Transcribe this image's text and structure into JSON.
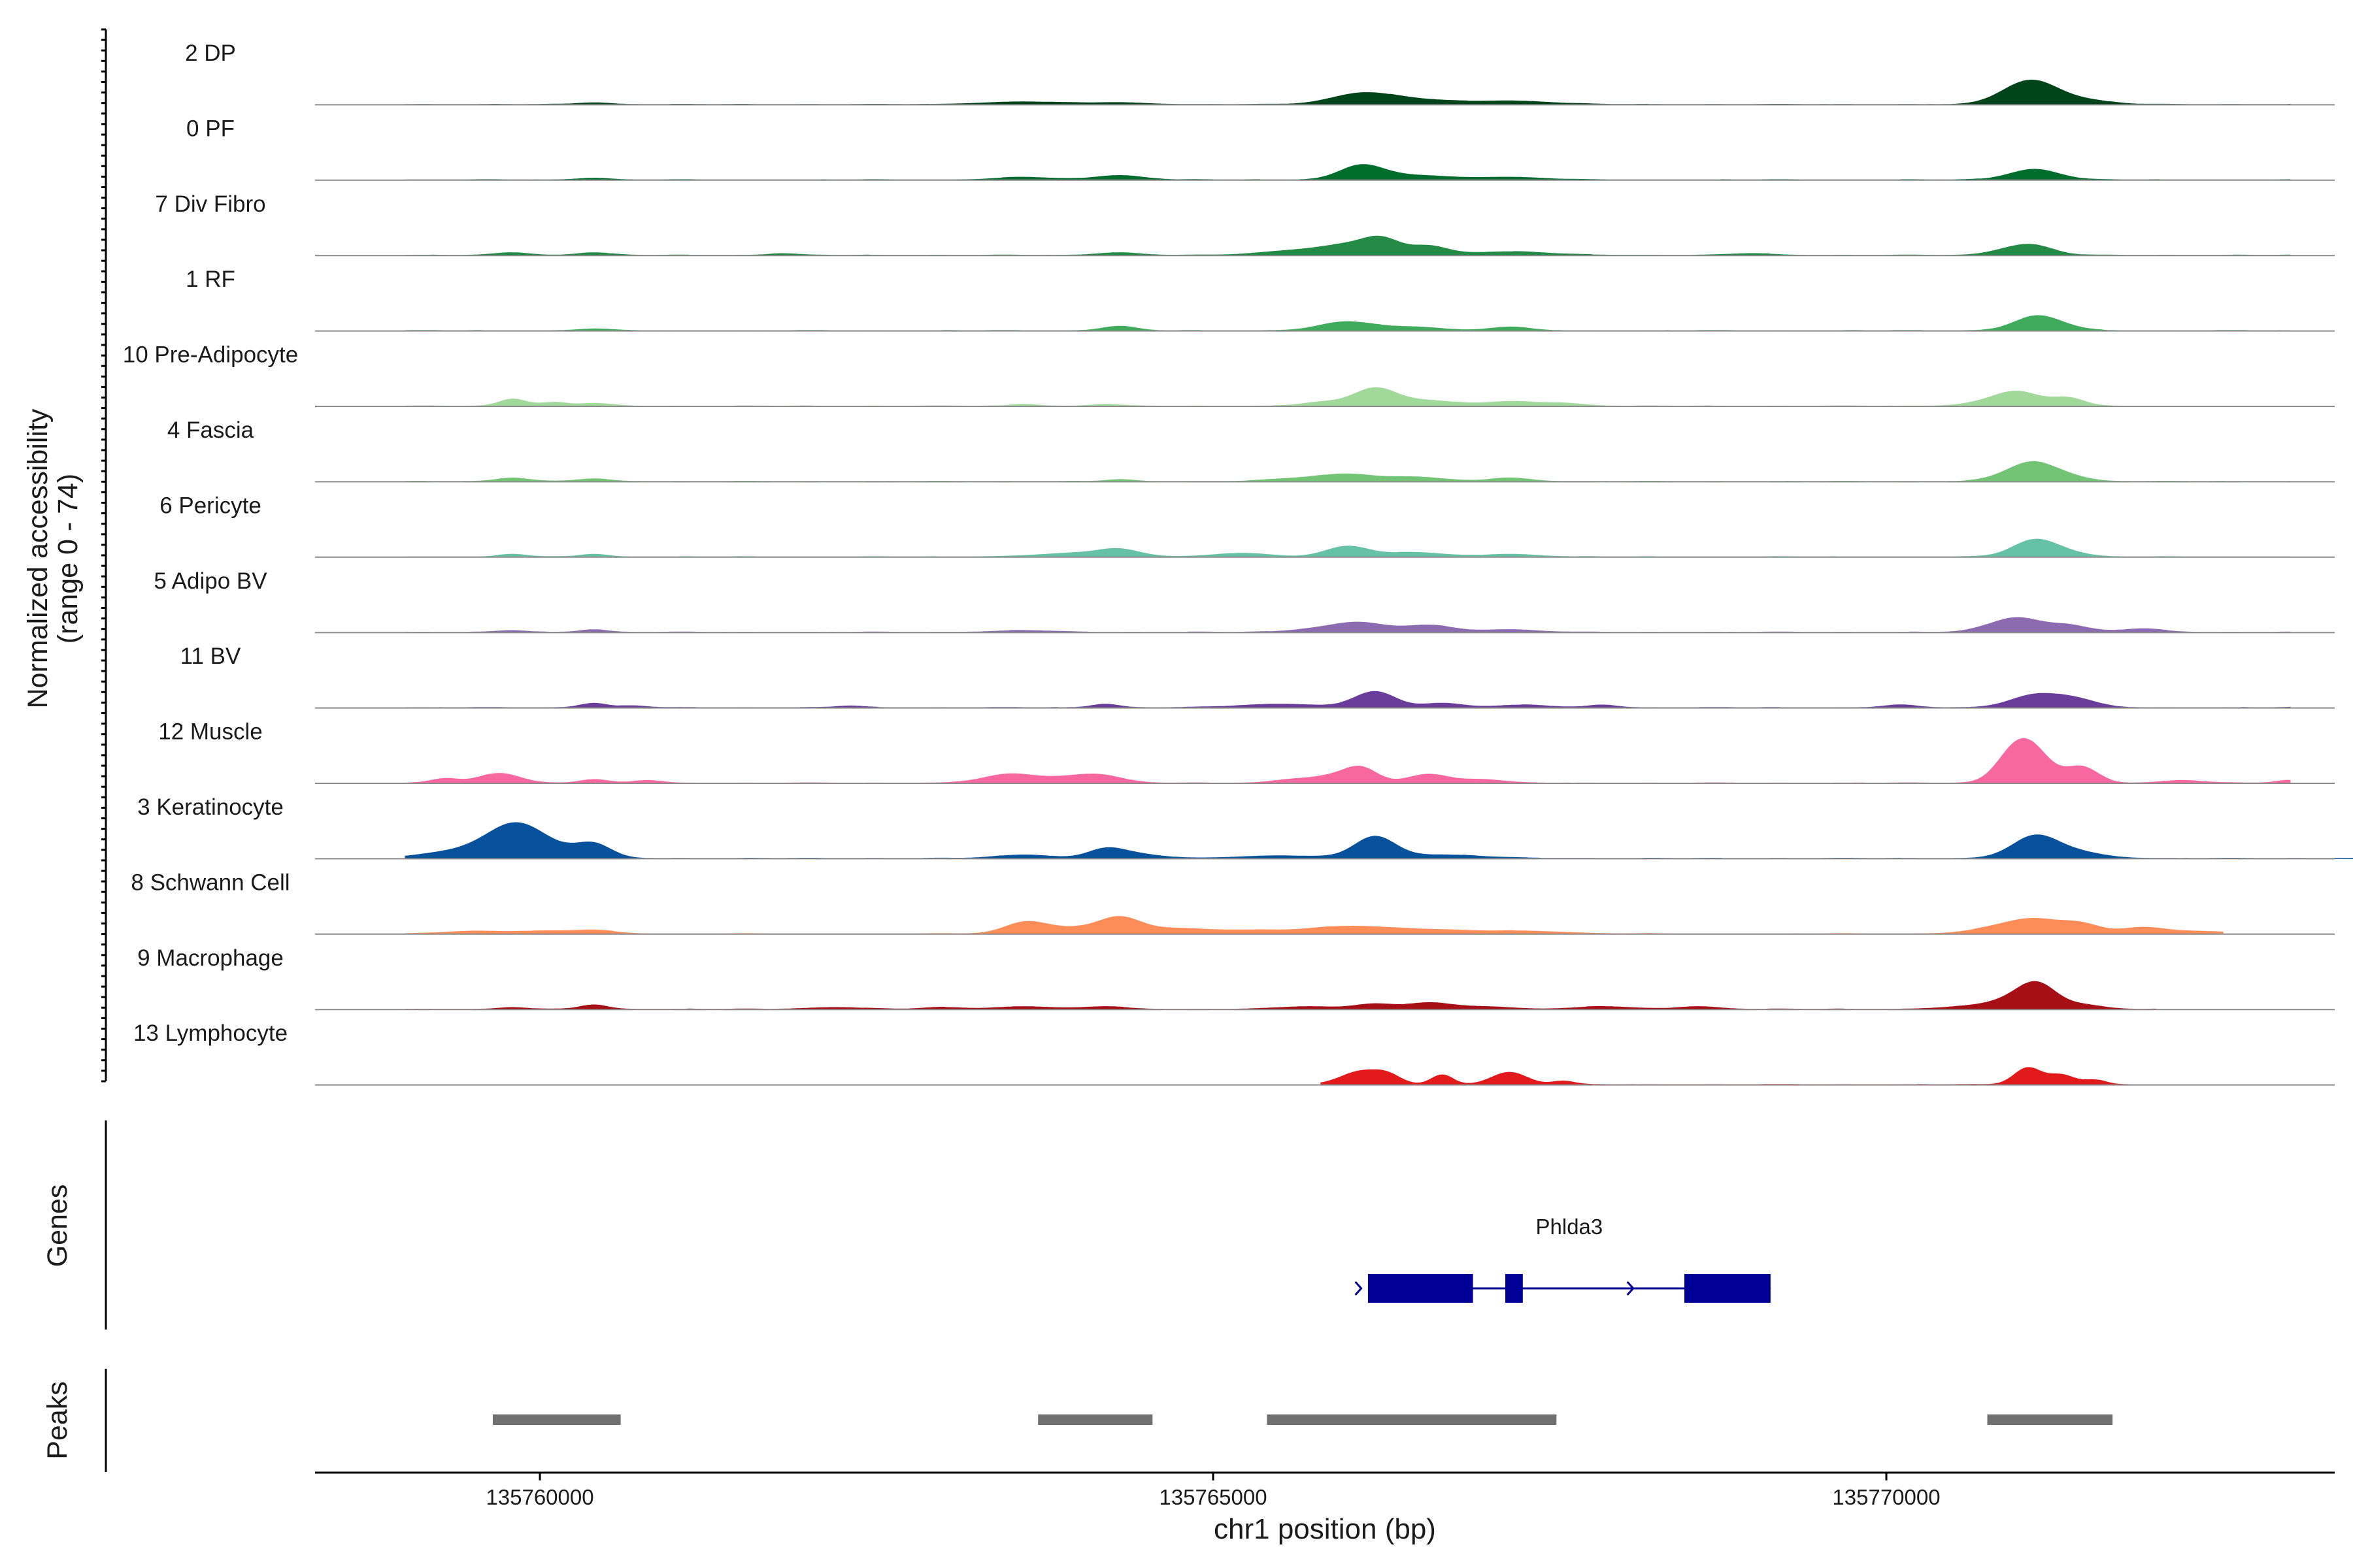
{
  "chart_data": {
    "type": "area",
    "subtype": "genome-coverage-tracks",
    "y_axis_label": "Normalized accessibility",
    "y_axis_range_label": "(range 0 - 74)",
    "y_range": [
      0,
      74
    ],
    "x_axis_label": "chr1 position (bp)",
    "x_range": [
      135758330,
      135773330
    ],
    "x_ticks": [
      135760000,
      135765000,
      135770000
    ],
    "x_tick_labels": [
      "135760000",
      "135765000",
      "135770000"
    ],
    "tracks": [
      {
        "name": "2 DP",
        "color": "#00441b",
        "range": [
          135759000,
          135773000
        ],
        "peaks": [
          [
            135760400,
            2,
            120
          ],
          [
            135763600,
            3,
            300
          ],
          [
            135764300,
            2,
            200
          ],
          [
            135766100,
            12,
            220
          ],
          [
            135766500,
            5,
            250
          ],
          [
            135767200,
            4,
            300
          ],
          [
            135770900,
            6,
            150
          ],
          [
            135771100,
            24,
            180
          ],
          [
            135771450,
            5,
            200
          ]
        ]
      },
      {
        "name": "0 PF",
        "color": "#006d2c",
        "range": [
          135759000,
          135773000
        ],
        "peaks": [
          [
            135760400,
            2,
            120
          ],
          [
            135763600,
            3,
            200
          ],
          [
            135764300,
            5,
            180
          ],
          [
            135766100,
            16,
            160
          ],
          [
            135766500,
            5,
            250
          ],
          [
            135767200,
            3,
            250
          ],
          [
            135771100,
            12,
            180
          ]
        ]
      },
      {
        "name": "7 Div Fibro",
        "color": "#238b45",
        "range": [
          135759000,
          135773000
        ],
        "peaks": [
          [
            135759800,
            3,
            120
          ],
          [
            135760400,
            3,
            120
          ],
          [
            135761800,
            2,
            100
          ],
          [
            135764300,
            3,
            150
          ],
          [
            135765600,
            5,
            250
          ],
          [
            135766000,
            10,
            200
          ],
          [
            135766250,
            16,
            140
          ],
          [
            135766600,
            10,
            140
          ],
          [
            135767200,
            4,
            300
          ],
          [
            135769000,
            2,
            150
          ],
          [
            135770900,
            5,
            150
          ],
          [
            135771100,
            10,
            150
          ]
        ]
      },
      {
        "name": "1 RF",
        "color": "#41ab5d",
        "range": [
          135759000,
          135773000
        ],
        "peaks": [
          [
            135760400,
            2,
            120
          ],
          [
            135764300,
            5,
            120
          ],
          [
            135766000,
            10,
            200
          ],
          [
            135766500,
            4,
            200
          ],
          [
            135767200,
            4,
            150
          ],
          [
            135771100,
            15,
            160
          ],
          [
            135771300,
            4,
            150
          ]
        ]
      },
      {
        "name": "10 Pre-Adipocyte",
        "color": "#a1d99b",
        "range": [
          135759000,
          135772000
        ],
        "peaks": [
          [
            135759800,
            8,
            100
          ],
          [
            135760100,
            4,
            100
          ],
          [
            135760400,
            3,
            120
          ],
          [
            135763600,
            2,
            100
          ],
          [
            135764200,
            2,
            100
          ],
          [
            135765800,
            4,
            150
          ],
          [
            135766200,
            20,
            160
          ],
          [
            135766600,
            6,
            200
          ],
          [
            135767200,
            5,
            200
          ],
          [
            135767600,
            3,
            150
          ],
          [
            135770700,
            3,
            150
          ],
          [
            135770900,
            5,
            150
          ],
          [
            135771000,
            12,
            160
          ],
          [
            135771350,
            9,
            120
          ]
        ]
      },
      {
        "name": "4 Fascia",
        "color": "#74c476",
        "range": [
          135759000,
          135773000
        ],
        "peaks": [
          [
            135759800,
            4,
            120
          ],
          [
            135760400,
            3,
            120
          ],
          [
            135764300,
            2,
            100
          ],
          [
            135765600,
            3,
            200
          ],
          [
            135766000,
            8,
            200
          ],
          [
            135766500,
            5,
            200
          ],
          [
            135767200,
            4,
            150
          ],
          [
            135770900,
            5,
            150
          ],
          [
            135771100,
            19,
            160
          ],
          [
            135771350,
            5,
            150
          ]
        ]
      },
      {
        "name": "6 Pericyte",
        "color": "#66c2a4",
        "range": [
          135759000,
          135773000
        ],
        "peaks": [
          [
            135759800,
            3,
            100
          ],
          [
            135760400,
            3,
            100
          ],
          [
            135764000,
            4,
            300
          ],
          [
            135764300,
            7,
            150
          ],
          [
            135765200,
            4,
            200
          ],
          [
            135766000,
            12,
            160
          ],
          [
            135766500,
            5,
            200
          ],
          [
            135767200,
            3,
            200
          ],
          [
            135771100,
            19,
            160
          ],
          [
            135771350,
            4,
            150
          ]
        ]
      },
      {
        "name": "5 Adipo BV",
        "color": "#8c6bb1",
        "range": [
          135759000,
          135773000
        ],
        "peaks": [
          [
            135759800,
            2,
            100
          ],
          [
            135760400,
            3,
            100
          ],
          [
            135763600,
            2,
            200
          ],
          [
            135765800,
            4,
            200
          ],
          [
            135766100,
            10,
            180
          ],
          [
            135766600,
            8,
            180
          ],
          [
            135767200,
            3,
            200
          ],
          [
            135770800,
            5,
            150
          ],
          [
            135771000,
            14,
            160
          ],
          [
            135771350,
            8,
            150
          ],
          [
            135771900,
            4,
            150
          ]
        ]
      },
      {
        "name": "11 BV",
        "color": "#6a3d9a",
        "range": [
          135759000,
          135773000
        ],
        "peaks": [
          [
            135760400,
            5,
            100
          ],
          [
            135760700,
            2,
            100
          ],
          [
            135762300,
            2,
            100
          ],
          [
            135764200,
            4,
            100
          ],
          [
            135765500,
            4,
            300
          ],
          [
            135766200,
            18,
            150
          ],
          [
            135766700,
            5,
            150
          ],
          [
            135767300,
            3,
            200
          ],
          [
            135767900,
            3,
            100
          ],
          [
            135770100,
            3,
            120
          ],
          [
            135771100,
            14,
            180
          ],
          [
            135771400,
            9,
            160
          ],
          [
            135773200,
            2,
            100
          ]
        ]
      },
      {
        "name": "12 Muscle",
        "color": "#f768a1",
        "range": [
          135759000,
          135773000
        ],
        "peaks": [
          [
            135759300,
            5,
            100
          ],
          [
            135759700,
            11,
            150
          ],
          [
            135760400,
            4,
            100
          ],
          [
            135760800,
            3,
            100
          ],
          [
            135763500,
            10,
            200
          ],
          [
            135764000,
            7,
            200
          ],
          [
            135764200,
            5,
            150
          ],
          [
            135765600,
            4,
            150
          ],
          [
            135765900,
            7,
            150
          ],
          [
            135766100,
            16,
            120
          ],
          [
            135766600,
            10,
            150
          ],
          [
            135767000,
            4,
            150
          ],
          [
            135770900,
            12,
            120
          ],
          [
            135771050,
            44,
            150
          ],
          [
            135771450,
            18,
            120
          ],
          [
            135772200,
            3,
            150
          ],
          [
            135773000,
            3,
            100
          ]
        ]
      },
      {
        "name": "3 Keratinocyte",
        "color": "#08519c",
        "range": [
          135759000,
          135774100
        ],
        "peaks": [
          [
            135759500,
            10,
            300
          ],
          [
            135759820,
            32,
            200
          ],
          [
            135760100,
            8,
            200
          ],
          [
            135760400,
            15,
            130
          ],
          [
            135763600,
            4,
            200
          ],
          [
            135764200,
            9,
            130
          ],
          [
            135764400,
            5,
            200
          ],
          [
            135765500,
            3,
            300
          ],
          [
            135766200,
            24,
            150
          ],
          [
            135766700,
            4,
            300
          ],
          [
            135771100,
            24,
            170
          ],
          [
            135771400,
            7,
            200
          ],
          [
            135774000,
            2,
            100
          ]
        ]
      },
      {
        "name": "8 Schwann Cell",
        "color": "#fc8d59",
        "range": [
          135759000,
          135772500
        ],
        "peaks": [
          [
            135759500,
            3,
            200
          ],
          [
            135760000,
            3,
            200
          ],
          [
            135760400,
            4,
            150
          ],
          [
            135763600,
            12,
            150
          ],
          [
            135763900,
            6,
            200
          ],
          [
            135764300,
            18,
            160
          ],
          [
            135764700,
            5,
            200
          ],
          [
            135765200,
            4,
            300
          ],
          [
            135766000,
            8,
            300
          ],
          [
            135766600,
            4,
            300
          ],
          [
            135767300,
            3,
            300
          ],
          [
            135770800,
            5,
            200
          ],
          [
            135771100,
            15,
            200
          ],
          [
            135771450,
            10,
            150
          ],
          [
            135771900,
            7,
            150
          ],
          [
            135772300,
            3,
            200
          ]
        ]
      },
      {
        "name": "9 Macrophage",
        "color": "#a50f15",
        "range": [
          135759000,
          135772000
        ],
        "peaks": [
          [
            135759800,
            2,
            100
          ],
          [
            135760400,
            5,
            100
          ],
          [
            135762200,
            2,
            200
          ],
          [
            135763000,
            2,
            150
          ],
          [
            135763600,
            3,
            200
          ],
          [
            135764200,
            3,
            150
          ],
          [
            135765700,
            3,
            200
          ],
          [
            135766200,
            6,
            150
          ],
          [
            135766600,
            7,
            150
          ],
          [
            135767000,
            3,
            200
          ],
          [
            135767900,
            3,
            200
          ],
          [
            135768600,
            3,
            150
          ],
          [
            135770600,
            3,
            200
          ],
          [
            135770900,
            8,
            150
          ],
          [
            135771120,
            28,
            140
          ],
          [
            135771450,
            5,
            150
          ]
        ]
      },
      {
        "name": "13 Lymphocyte",
        "color": "#e31a1c",
        "range": [
          135765800,
          135771800
        ],
        "peaks": [
          [
            135766100,
            15,
            150
          ],
          [
            135766300,
            8,
            100
          ],
          [
            135766700,
            11,
            80
          ],
          [
            135767200,
            14,
            130
          ],
          [
            135767600,
            4,
            80
          ],
          [
            135771050,
            19,
            100
          ],
          [
            135771300,
            11,
            100
          ],
          [
            135771550,
            5,
            80
          ]
        ]
      }
    ],
    "genes_label": "Genes",
    "gene": {
      "name": "Phlda3",
      "strand": "+",
      "start": 135766150,
      "end": 135769140,
      "exons": [
        [
          135766150,
          135766930
        ],
        [
          135767170,
          135767300
        ],
        [
          135768500,
          135769140
        ]
      ],
      "color": "#000096"
    },
    "peaks_label": "Peaks",
    "peak_regions": [
      [
        135759650,
        135760600
      ],
      [
        135763700,
        135764550
      ],
      [
        135765400,
        135767550
      ],
      [
        135770750,
        135771680
      ]
    ],
    "peak_color": "#707070"
  }
}
